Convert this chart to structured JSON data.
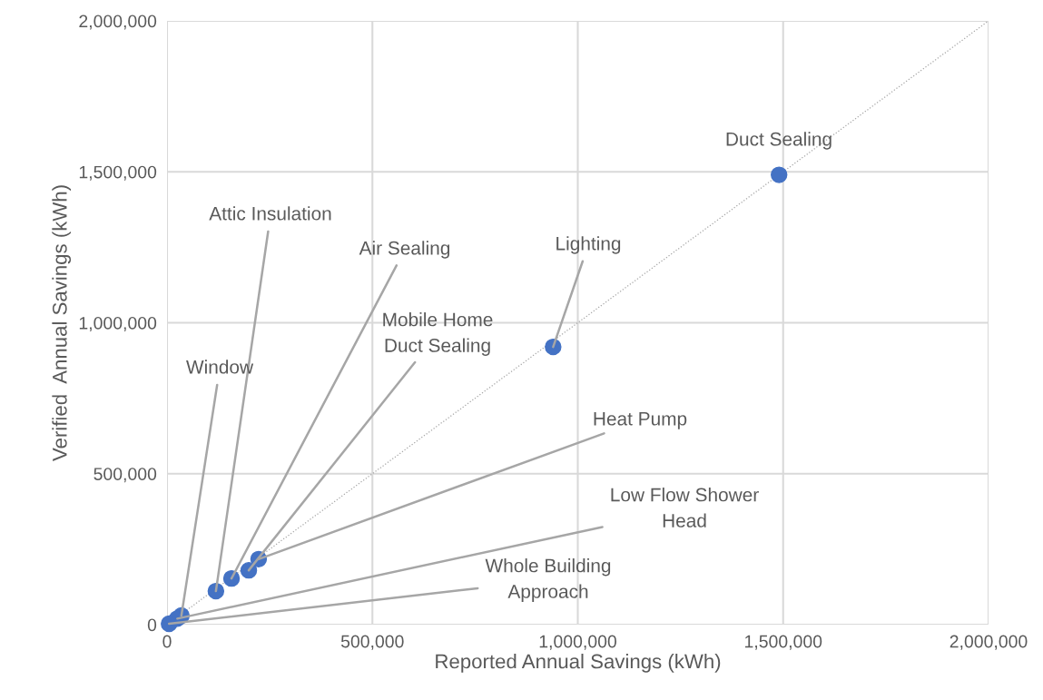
{
  "chart_data": {
    "type": "scatter",
    "xlabel": "Reported Annual Savings (kWh)",
    "ylabel": "Verified  Annual Savings (kWh)",
    "xlim": [
      0,
      2000000
    ],
    "ylim": [
      0,
      2000000
    ],
    "xticks": [
      {
        "value": 0,
        "label": "0"
      },
      {
        "value": 500000,
        "label": "500,000"
      },
      {
        "value": 1000000,
        "label": "1,000,000"
      },
      {
        "value": 1500000,
        "label": "1,500,000"
      },
      {
        "value": 2000000,
        "label": "2,000,000"
      }
    ],
    "yticks": [
      {
        "value": 0,
        "label": "0"
      },
      {
        "value": 500000,
        "label": "500,000"
      },
      {
        "value": 1000000,
        "label": "1,000,000"
      },
      {
        "value": 1500000,
        "label": "1,500,000"
      },
      {
        "value": 2000000,
        "label": "2,000,000"
      }
    ],
    "grid": true,
    "series": [
      {
        "marker": "circle",
        "color": "#4472c4",
        "x": [
          1490000,
          940000,
          119000,
          157000,
          199000,
          223000,
          35000,
          25000,
          5000
        ],
        "values": [
          1490000,
          920000,
          111000,
          153000,
          180000,
          217000,
          30000,
          20000,
          3000
        ]
      },
      {
        "type": "line",
        "marker": "none",
        "color": "#a6a6a6",
        "line_style": "dotted",
        "x": [
          0,
          2000000
        ],
        "values": [
          0,
          2000000
        ]
      }
    ],
    "annotations": [
      {
        "text": "Duct Sealing",
        "x": 1490000,
        "y": 1490000
      },
      {
        "text": "Lighting",
        "x": 940000,
        "y": 920000
      },
      {
        "text": "Attic Insulation",
        "x": 119000,
        "y": 111000
      },
      {
        "text": "Air Sealing",
        "x": 157000,
        "y": 153000
      },
      {
        "text": "Mobile Home\nDuct Sealing",
        "x": 199000,
        "y": 180000
      },
      {
        "text": "Heat Pump",
        "x": 223000,
        "y": 217000
      },
      {
        "text": "Window",
        "x": 35000,
        "y": 30000
      },
      {
        "text": "Low Flow Shower\nHead",
        "x": 25000,
        "y": 20000
      },
      {
        "text": "Whole Building\nApproach",
        "x": 5000,
        "y": 3000
      }
    ]
  }
}
